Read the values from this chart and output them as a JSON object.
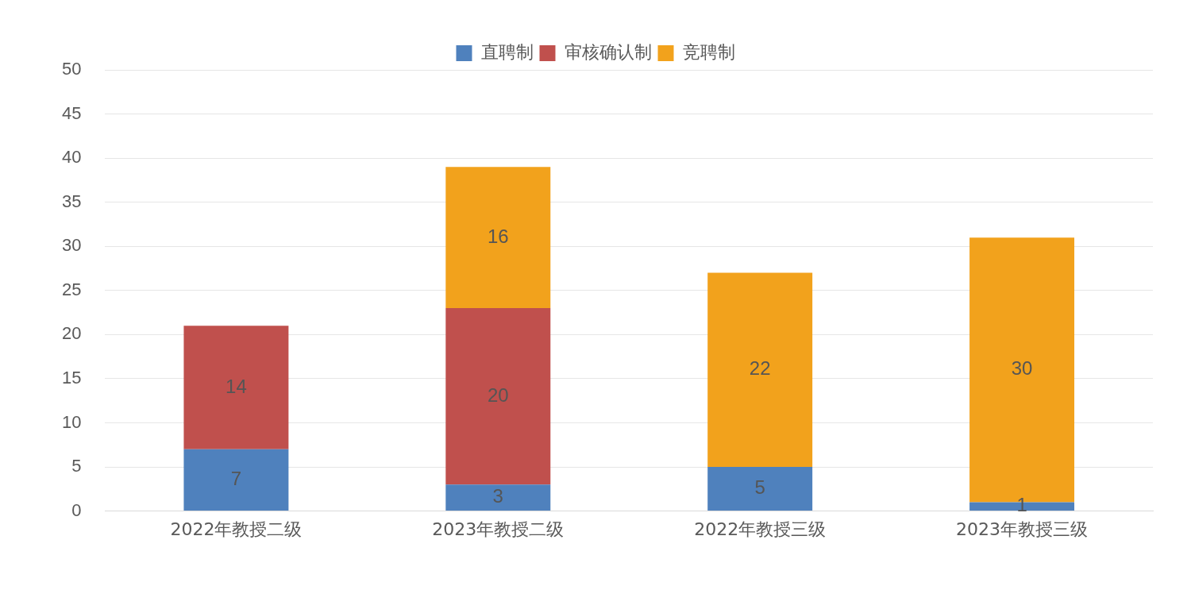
{
  "chart_data": {
    "type": "bar",
    "stacked": true,
    "categories": [
      "2022年教授二级",
      "2023年教授二级",
      "2022年教授三级",
      "2023年教授三级"
    ],
    "series": [
      {
        "name": "直聘制",
        "color": "#4f81bd",
        "values": [
          7,
          3,
          5,
          1
        ]
      },
      {
        "name": "审核确认制",
        "color": "#c0504d",
        "values": [
          14,
          20,
          null,
          null
        ]
      },
      {
        "name": "竞聘制",
        "color": "#f2a21c",
        "values": [
          null,
          16,
          22,
          30
        ]
      }
    ],
    "ylim": [
      0,
      50
    ],
    "yticks": [
      0,
      5,
      10,
      15,
      20,
      25,
      30,
      35,
      40,
      45,
      50
    ],
    "grid": "y",
    "legend": "top",
    "data_labels": true
  }
}
